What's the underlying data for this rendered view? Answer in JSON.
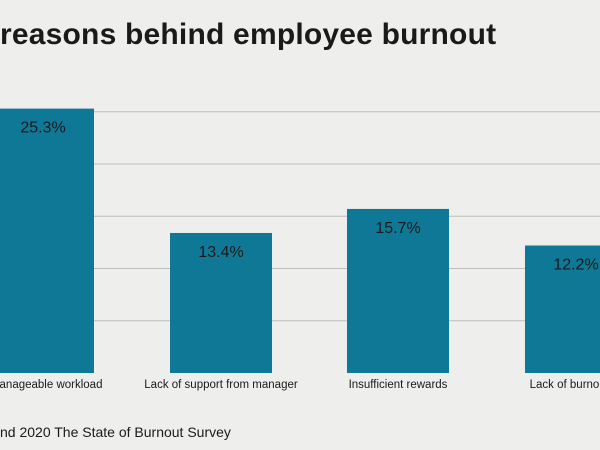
{
  "title": "reasons behind employee burnout",
  "source": "nd 2020 The State of Burnout Survey",
  "colors": {
    "background": "#eeeeec",
    "bar": "#0f7896",
    "gridline": "#bdbdbd",
    "text": "#1a1a1a"
  },
  "chart_data": {
    "type": "bar",
    "title": "reasons behind employee burnout",
    "categories": [
      "nmanageable workload",
      "Lack of support from manager",
      "Insufficient rewards",
      "Lack of burnout re"
    ],
    "values": [
      25.3,
      13.4,
      15.7,
      12.2
    ],
    "data_labels": [
      "25.3%",
      "13.4%",
      "15.7%",
      "12.2%"
    ],
    "ylim": [
      0,
      25
    ],
    "grid": true,
    "legend": "none"
  }
}
